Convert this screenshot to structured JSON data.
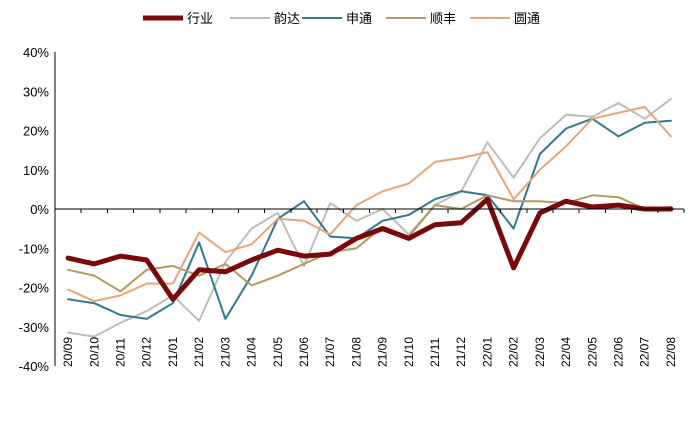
{
  "chart_data": {
    "type": "line",
    "title": "",
    "xlabel": "",
    "ylabel": "",
    "ylim": [
      -40,
      40
    ],
    "yticks": [
      -40,
      -30,
      -20,
      -10,
      0,
      10,
      20,
      30,
      40
    ],
    "ytick_labels": [
      "-40%",
      "-30%",
      "-20%",
      "-10%",
      "0%",
      "10%",
      "20%",
      "30%",
      "40%"
    ],
    "grid": false,
    "legend_position": "top",
    "categories": [
      "20/09",
      "20/10",
      "20/11",
      "20/12",
      "21/01",
      "21/02",
      "21/03",
      "21/04",
      "21/05",
      "21/06",
      "21/07",
      "21/08",
      "21/09",
      "21/10",
      "21/11",
      "21/12",
      "22/01",
      "22/02",
      "22/03",
      "22/04",
      "22/05",
      "22/06",
      "22/07",
      "22/08"
    ],
    "series": [
      {
        "name": "行业",
        "color": "#7a0a0a",
        "width": 5,
        "values": [
          -12.5,
          -14,
          -12,
          -13,
          -23,
          -15.5,
          -16,
          -13,
          -10.5,
          -12,
          -11.5,
          -7.5,
          -5,
          -7.5,
          -4,
          -3.5,
          2.5,
          -15,
          -1,
          2,
          0.5,
          1,
          0,
          0
        ]
      },
      {
        "name": "韵达",
        "color": "#bfbdb6",
        "width": 2,
        "values": [
          -31.5,
          -32.5,
          -29,
          -26,
          -22,
          -28.5,
          -13.5,
          -5,
          -1,
          -14.5,
          1.5,
          -3,
          0,
          -6.5,
          1,
          4.5,
          17,
          8,
          18,
          24,
          23.5,
          27,
          23,
          28
        ]
      },
      {
        "name": "申通",
        "color": "#2f7a8c",
        "width": 2,
        "values": [
          -23,
          -24,
          -27,
          -28,
          -24,
          -8.5,
          -28,
          -17,
          -2.5,
          2,
          -7,
          -7.5,
          -3,
          -1.5,
          2.5,
          4.5,
          3.5,
          -5,
          14,
          20.5,
          23,
          18.5,
          22,
          22.5
        ]
      },
      {
        "name": "顺丰",
        "color": "#b39a62",
        "width": 2,
        "values": [
          -15.5,
          -17,
          -21,
          -15.5,
          -14.5,
          -17,
          -14,
          -19.5,
          -17,
          -14,
          -11,
          -10,
          -4.5,
          -7,
          1,
          0,
          3.5,
          2,
          2,
          1.5,
          3.5,
          3,
          0,
          0.5
        ]
      },
      {
        "name": "圆通",
        "color": "#e3a677",
        "width": 2,
        "values": [
          -20.5,
          -23.5,
          -22,
          -19,
          -19,
          -6,
          -11,
          -9,
          -2.5,
          -3,
          -6.5,
          1,
          4.5,
          6.5,
          12,
          13,
          14.5,
          2.5,
          10,
          16,
          23,
          24.5,
          26,
          18.5
        ]
      }
    ]
  }
}
